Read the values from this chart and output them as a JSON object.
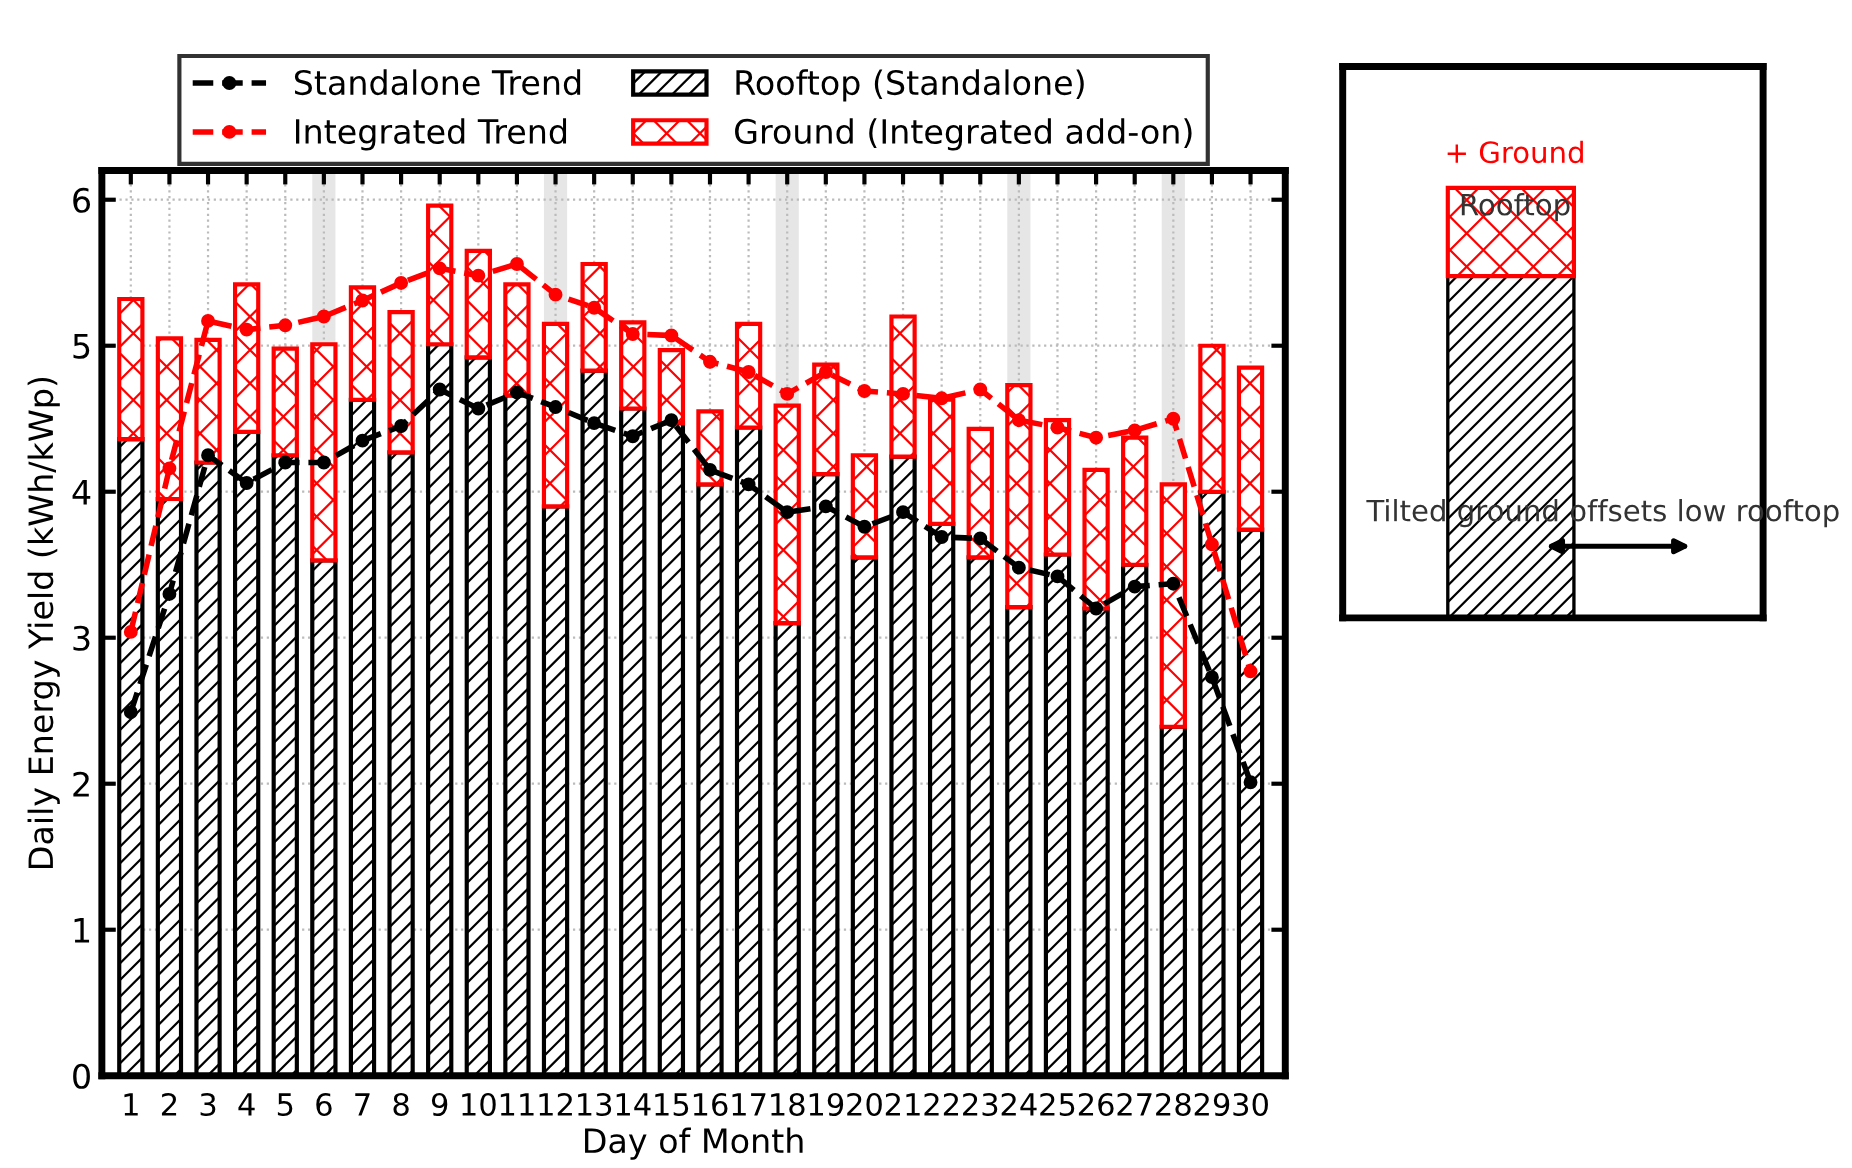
{
  "chart_data": [
    {
      "type": "bar",
      "stacked": true,
      "xlabel": "Day of Month",
      "ylabel": "Daily Energy Yield (kWh/kWp)",
      "x": [
        1,
        2,
        3,
        4,
        5,
        6,
        7,
        8,
        9,
        10,
        11,
        12,
        13,
        14,
        15,
        16,
        17,
        18,
        19,
        20,
        21,
        22,
        23,
        24,
        25,
        26,
        27,
        28,
        29,
        30
      ],
      "series": [
        {
          "name": "Rooftop (Standalone)",
          "type": "bar",
          "color": "#000000",
          "values": [
            4.36,
            3.95,
            4.2,
            4.41,
            4.25,
            3.53,
            4.63,
            4.27,
            5.01,
            4.92,
            4.66,
            3.9,
            4.83,
            4.57,
            4.47,
            4.05,
            4.44,
            3.1,
            4.12,
            3.55,
            4.24,
            3.78,
            3.55,
            3.21,
            3.57,
            3.2,
            3.5,
            2.39,
            4.0,
            3.74
          ]
        },
        {
          "name": "Ground (Integrated add-on)",
          "type": "bar",
          "color": "#ff0000",
          "values": [
            0.96,
            1.1,
            0.84,
            1.01,
            0.73,
            1.48,
            0.77,
            0.96,
            0.95,
            0.73,
            0.76,
            1.25,
            0.73,
            0.59,
            0.5,
            0.5,
            0.71,
            1.49,
            0.75,
            0.7,
            0.96,
            0.85,
            0.88,
            1.52,
            0.92,
            0.95,
            0.87,
            1.66,
            1.0,
            1.11
          ]
        },
        {
          "name": "Standalone Trend",
          "type": "line",
          "color": "#000000",
          "marker": "circle",
          "line_style": "dashed",
          "values": [
            2.49,
            3.3,
            4.25,
            4.06,
            4.2,
            4.2,
            4.35,
            4.45,
            4.7,
            4.57,
            4.68,
            4.58,
            4.47,
            4.38,
            4.49,
            4.15,
            4.05,
            3.86,
            3.9,
            3.76,
            3.86,
            3.69,
            3.68,
            3.48,
            3.42,
            3.2,
            3.35,
            3.37,
            2.73,
            2.01
          ]
        },
        {
          "name": "Integrated Trend",
          "type": "line",
          "color": "#ff0000",
          "marker": "circle",
          "line_style": "dashed",
          "values": [
            3.04,
            4.16,
            5.17,
            5.11,
            5.14,
            5.2,
            5.31,
            5.43,
            5.53,
            5.48,
            5.56,
            5.35,
            5.26,
            5.08,
            5.07,
            4.89,
            4.82,
            4.67,
            4.82,
            4.69,
            4.67,
            4.64,
            4.7,
            4.49,
            4.44,
            4.37,
            4.42,
            4.5,
            3.64,
            2.77
          ]
        }
      ],
      "xlim": [
        0.25,
        30.9
      ],
      "xticks": [
        1,
        2,
        3,
        4,
        5,
        6,
        7,
        8,
        9,
        10,
        11,
        12,
        13,
        14,
        15,
        16,
        17,
        18,
        19,
        20,
        21,
        22,
        23,
        24,
        25,
        26,
        27,
        28,
        29,
        30
      ],
      "ylim": [
        0,
        6.2
      ],
      "yticks": [
        0,
        1,
        2,
        3,
        4,
        5,
        6
      ],
      "bands": [
        {
          "axis": "x",
          "from": 5.7,
          "to": 6.3,
          "color": "#e6e6e6"
        },
        {
          "axis": "x",
          "from": 11.7,
          "to": 12.3,
          "color": "#e6e6e6"
        },
        {
          "axis": "x",
          "from": 17.7,
          "to": 18.3,
          "color": "#e6e6e6"
        },
        {
          "axis": "x",
          "from": 23.7,
          "to": 24.3,
          "color": "#e6e6e6"
        },
        {
          "axis": "x",
          "from": 27.7,
          "to": 28.3,
          "color": "#e6e6e6"
        }
      ],
      "grid": true,
      "legend": "top"
    },
    {
      "type": "other",
      "annotations": [
        "+ Ground",
        "Rooftop",
        "Tilted ground offsets low rooftop"
      ]
    }
  ]
}
